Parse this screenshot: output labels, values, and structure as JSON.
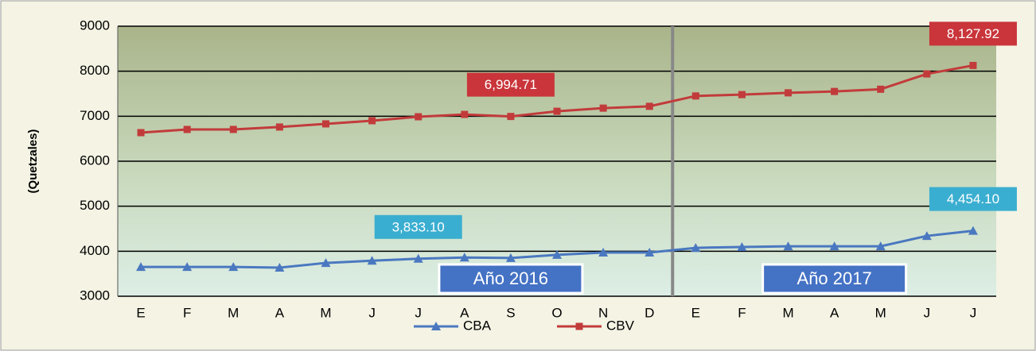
{
  "chart_data": {
    "type": "line",
    "y_axis_label": "(Quetzales)",
    "categories": [
      "E",
      "F",
      "M",
      "A",
      "M",
      "J",
      "J",
      "A",
      "S",
      "O",
      "N",
      "D",
      "E",
      "F",
      "M",
      "A",
      "M",
      "J",
      "J"
    ],
    "series": [
      {
        "name": "CBA",
        "color": "#4a78c0",
        "marker": "triangle",
        "values": [
          3650,
          3650,
          3650,
          3635,
          3740,
          3790,
          3833.1,
          3860,
          3850,
          3920,
          3970,
          3970,
          4075,
          4095,
          4110,
          4110,
          4110,
          4340,
          4454.1
        ],
        "value_labels": [
          null,
          null,
          null,
          null,
          null,
          null,
          "3,833.10",
          null,
          null,
          null,
          null,
          null,
          null,
          null,
          null,
          null,
          null,
          null,
          "4,454.10"
        ],
        "label_color": "#3aaed0"
      },
      {
        "name": "CBV",
        "color": "#c23b3b",
        "marker": "square",
        "values": [
          6635,
          6706,
          6706,
          6760,
          6830,
          6900,
          6988,
          7040,
          6994.71,
          7110,
          7180,
          7220,
          7450,
          7480,
          7520,
          7550,
          7600,
          7940,
          8127.92
        ],
        "value_labels": [
          null,
          null,
          null,
          null,
          null,
          null,
          null,
          null,
          "6,994.71",
          null,
          null,
          null,
          null,
          null,
          null,
          null,
          null,
          null,
          "8,127.92"
        ],
        "label_color": "#c9353a"
      }
    ],
    "annotations": [
      {
        "text": "Año 2016",
        "index": 8
      },
      {
        "text": "Año 2017",
        "index": 15
      }
    ],
    "divider_after_index": 11,
    "ylim": [
      3000,
      9000
    ],
    "yticks": [
      3000,
      4000,
      5000,
      6000,
      7000,
      8000,
      9000
    ],
    "grid": true,
    "legend": "bottom"
  }
}
